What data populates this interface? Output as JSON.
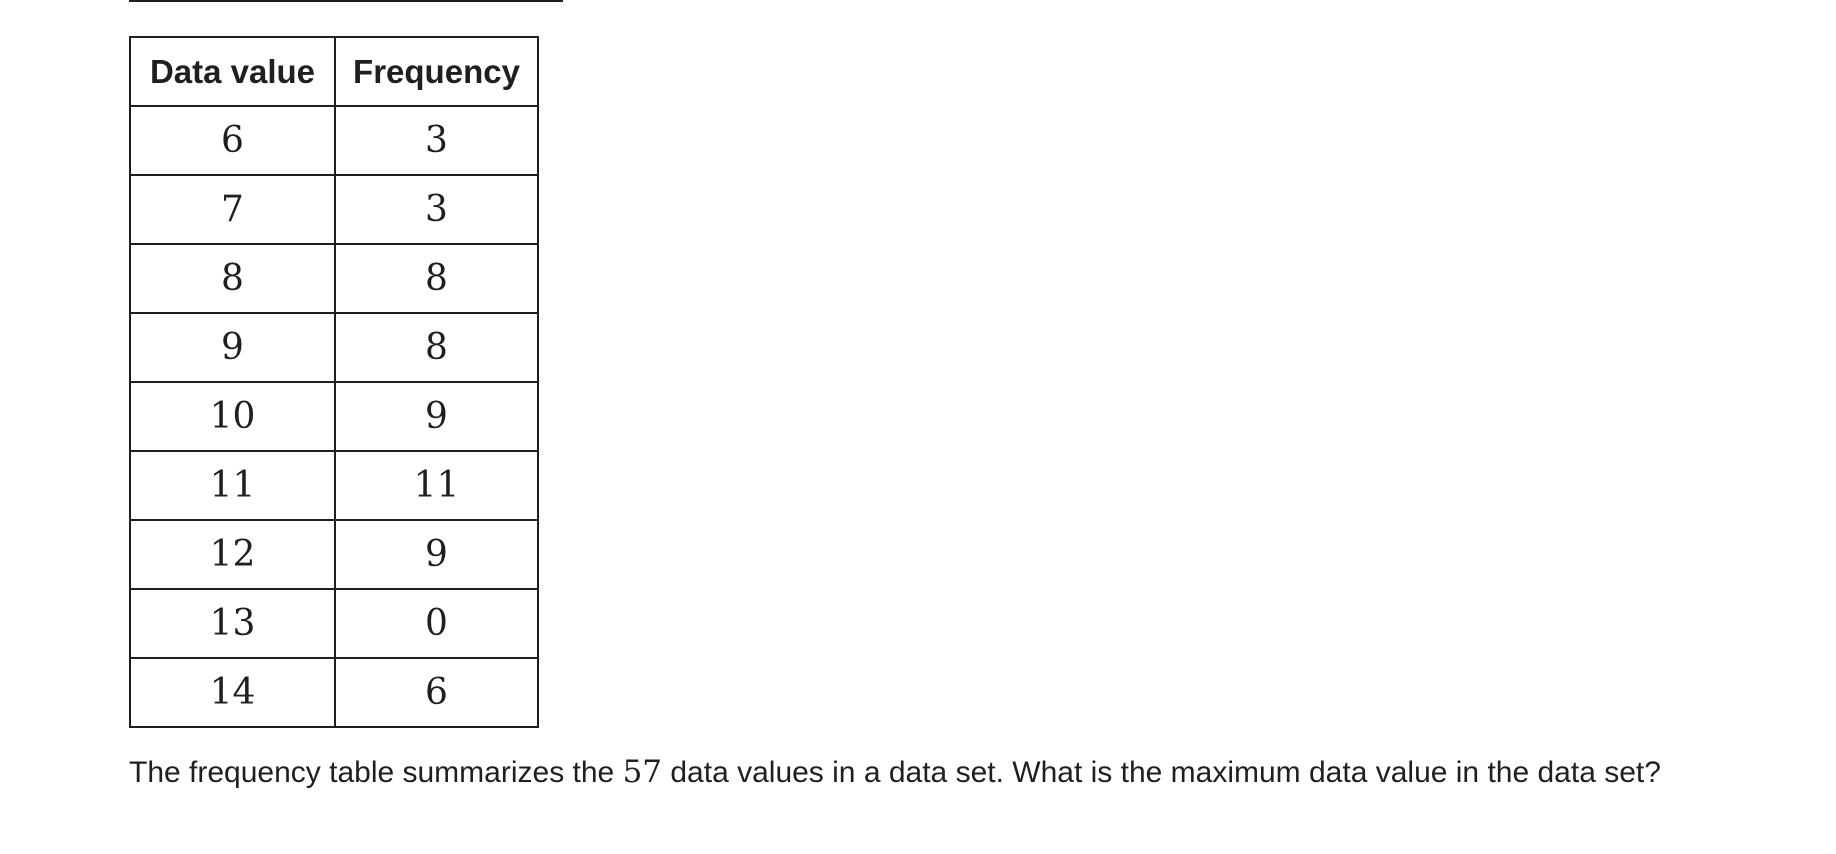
{
  "table": {
    "headers": [
      "Data value",
      "Frequency"
    ],
    "rows": [
      {
        "value": "6",
        "frequency": "3"
      },
      {
        "value": "7",
        "frequency": "3"
      },
      {
        "value": "8",
        "frequency": "8"
      },
      {
        "value": "9",
        "frequency": "8"
      },
      {
        "value": "10",
        "frequency": "9"
      },
      {
        "value": "11",
        "frequency": "11"
      },
      {
        "value": "12",
        "frequency": "9"
      },
      {
        "value": "13",
        "frequency": "0"
      },
      {
        "value": "14",
        "frequency": "6"
      }
    ]
  },
  "question": {
    "before": "The frequency table summarizes the ",
    "count": "57",
    "after": " data values in a data set. What is the maximum data value in the data set?"
  }
}
